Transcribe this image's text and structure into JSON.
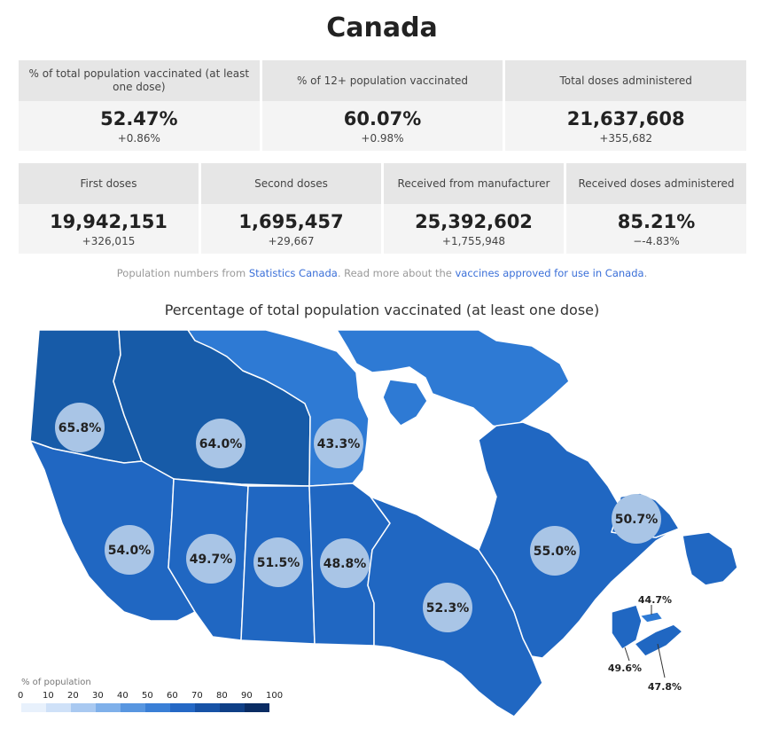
{
  "page_title": "Canada",
  "row1": [
    {
      "label": "% of total population vaccinated (at least one dose)",
      "value": "52.47%",
      "change": "+0.86%"
    },
    {
      "label": "% of 12+ population vaccinated",
      "value": "60.07%",
      "change": "+0.98%"
    },
    {
      "label": "Total doses administered",
      "value": "21,637,608",
      "change": "+355,682"
    }
  ],
  "row2": [
    {
      "label": "First doses",
      "value": "19,942,151",
      "change": "+326,015"
    },
    {
      "label": "Second doses",
      "value": "1,695,457",
      "change": "+29,667"
    },
    {
      "label": "Received from manufacturer",
      "value": "25,392,602",
      "change": "+1,755,948"
    },
    {
      "label": "Received doses administered",
      "value": "85.21%",
      "change": "−-4.83%"
    }
  ],
  "note": {
    "prefix": "Population numbers from ",
    "link1": "Statistics Canada",
    "middle": ". Read more about the ",
    "link2": "vaccines approved for use in Canada",
    "suffix": "."
  },
  "map": {
    "title": "Percentage of total population vaccinated (at least one dose)",
    "regions": [
      {
        "id": "yt",
        "label": "65.8%",
        "value": 65.8
      },
      {
        "id": "nt",
        "label": "64.0%",
        "value": 64.0
      },
      {
        "id": "nu",
        "label": "43.3%",
        "value": 43.3
      },
      {
        "id": "bc",
        "label": "54.0%",
        "value": 54.0
      },
      {
        "id": "ab",
        "label": "49.7%",
        "value": 49.7
      },
      {
        "id": "sk",
        "label": "51.5%",
        "value": 51.5
      },
      {
        "id": "mb",
        "label": "48.8%",
        "value": 48.8
      },
      {
        "id": "on",
        "label": "52.3%",
        "value": 52.3
      },
      {
        "id": "qc",
        "label": "55.0%",
        "value": 55.0
      },
      {
        "id": "nl",
        "label": "50.7%",
        "value": 50.7
      },
      {
        "id": "pe",
        "label": "44.7%",
        "value": 44.7
      },
      {
        "id": "nb",
        "label": "49.6%",
        "value": 49.6
      },
      {
        "id": "ns",
        "label": "47.8%",
        "value": 47.8
      }
    ]
  },
  "legend": {
    "title": "% of population",
    "ticks": [
      "0",
      "10",
      "20",
      "30",
      "40",
      "50",
      "60",
      "70",
      "80",
      "90",
      "100"
    ],
    "colors": [
      "#e8f1fc",
      "#cfe1f8",
      "#a9c9f1",
      "#7fb0ea",
      "#5896e0",
      "#3a7fd6",
      "#2468c5",
      "#1752a6",
      "#0f3f86",
      "#0a2c63"
    ]
  },
  "colors": {
    "region_light": "#2e7ad4",
    "region_mid": "#2067c2",
    "region_dark": "#175ba8",
    "bubble": "#a9c5e6",
    "link": "#3a6fd8"
  }
}
